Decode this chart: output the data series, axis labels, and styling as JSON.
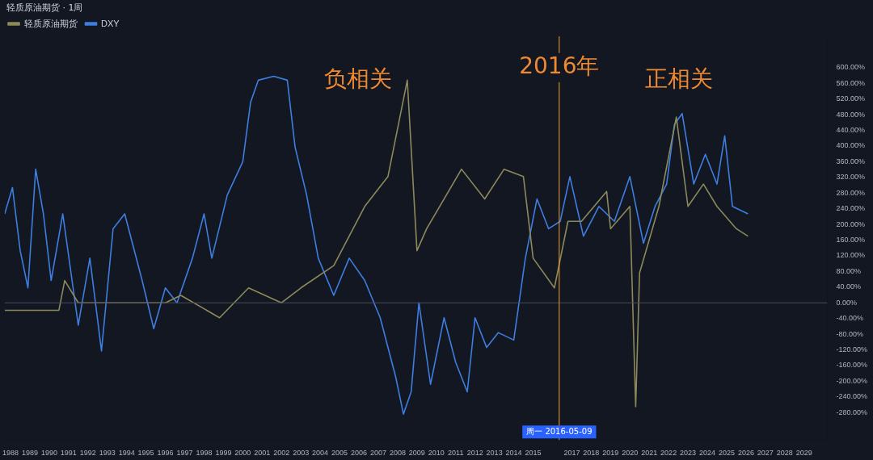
{
  "chart_data": {
    "type": "line",
    "title": "轻质原油期货 · 1周",
    "xlim": [
      1987.7,
      2030.2
    ],
    "xticks": [
      1988,
      1989,
      1990,
      1991,
      1992,
      1993,
      1994,
      1995,
      1996,
      1997,
      1998,
      1999,
      2000,
      2001,
      2002,
      2003,
      2004,
      2005,
      2006,
      2007,
      2008,
      2009,
      2010,
      2011,
      2012,
      2013,
      2014,
      2015,
      2017,
      2018,
      2019,
      2020,
      2021,
      2022,
      2023,
      2024,
      2025,
      2026,
      2027,
      2028,
      2029
    ],
    "ylim": [
      -350,
      680
    ],
    "yticks": [
      {
        "value": -280,
        "label": "-280.00%"
      },
      {
        "value": -240,
        "label": "-240.00%"
      },
      {
        "value": -200,
        "label": "-200.00%"
      },
      {
        "value": -160,
        "label": "-160.00%"
      },
      {
        "value": -120,
        "label": "-120.00%"
      },
      {
        "value": -80,
        "label": "-80.00%"
      },
      {
        "value": -40,
        "label": "-40.00%"
      },
      {
        "value": 0,
        "label": "0.00%"
      },
      {
        "value": 40,
        "label": "40.00%"
      },
      {
        "value": 80,
        "label": "80.00%"
      },
      {
        "value": 120,
        "label": "120.00%"
      },
      {
        "value": 160,
        "label": "160.00%"
      },
      {
        "value": 200,
        "label": "200.00%"
      },
      {
        "value": 240,
        "label": "240.00%"
      },
      {
        "value": 280,
        "label": "280.00%"
      },
      {
        "value": 320,
        "label": "320.00%"
      },
      {
        "value": 360,
        "label": "360.00%"
      },
      {
        "value": 400,
        "label": "400.00%"
      },
      {
        "value": 440,
        "label": "440.00%"
      },
      {
        "value": 480,
        "label": "480.00%"
      },
      {
        "value": 520,
        "label": "520.00%"
      },
      {
        "value": 560,
        "label": "560.00%"
      },
      {
        "value": 600,
        "label": "600.00%"
      }
    ],
    "grid": false,
    "legend": "top left",
    "marker": "none",
    "line_style": "solid",
    "series": [
      {
        "name": "轻质原油期货",
        "color": "#8c8a5a",
        "x": [
          1987.7,
          1990.5,
          1990.8,
          1991.5,
          1996,
          1996.8,
          1998.8,
          2000.3,
          2002,
          2003,
          2004.7,
          2006.3,
          2007.5,
          2008.5,
          2009.0,
          2009.5,
          2011.3,
          2012.5,
          2013.5,
          2014.5,
          2015.0,
          2016.1,
          2016.8,
          2017.5,
          2018.8,
          2019.0,
          2020.0,
          2020.3,
          2020.5,
          2021.5,
          2022.4,
          2023.0,
          2023.8,
          2024.5,
          2025.5,
          2026.1
        ],
        "values": [
          -19,
          -19,
          57,
          0,
          0,
          19,
          -38,
          38,
          0,
          38,
          95,
          246,
          322,
          568,
          133,
          189,
          341,
          265,
          341,
          322,
          114,
          38,
          208,
          208,
          284,
          189,
          246,
          -265,
          76,
          246,
          474,
          246,
          303,
          246,
          189,
          170
        ]
      },
      {
        "name": "DXY",
        "color": "#3d7ee0",
        "x": [
          1987.7,
          1988.1,
          1988.5,
          1988.9,
          1989.3,
          1989.7,
          1990.1,
          1990.7,
          1991.5,
          1992.1,
          1992.7,
          1993.3,
          1993.9,
          1994.8,
          1995.4,
          1996.0,
          1996.6,
          1997.4,
          1998.0,
          1998.4,
          1999.2,
          2000.0,
          2000.4,
          2000.8,
          2001.6,
          2002.3,
          2002.7,
          2003.3,
          2003.9,
          2004.7,
          2005.5,
          2006.3,
          2007.1,
          2007.9,
          2008.3,
          2008.7,
          2009.1,
          2009.7,
          2010.4,
          2011.0,
          2011.6,
          2012.0,
          2012.6,
          2013.2,
          2014.0,
          2014.6,
          2015.2,
          2015.8,
          2016.4,
          2016.9,
          2017.6,
          2018.4,
          2019.2,
          2020.0,
          2020.7,
          2021.3,
          2021.9,
          2022.3,
          2022.7,
          2023.3,
          2023.9,
          2024.5,
          2024.9,
          2025.3,
          2026.1
        ],
        "values": [
          227,
          294,
          133,
          38,
          341,
          227,
          57,
          227,
          -57,
          114,
          -123,
          189,
          227,
          57,
          -66,
          38,
          0,
          114,
          227,
          114,
          275,
          360,
          511,
          568,
          578,
          568,
          398,
          275,
          114,
          19,
          114,
          57,
          -38,
          -189,
          -284,
          -227,
          0,
          -208,
          -38,
          -152,
          -227,
          -38,
          -114,
          -76,
          -95,
          114,
          265,
          189,
          208,
          322,
          170,
          246,
          208,
          322,
          152,
          246,
          303,
          455,
          483,
          303,
          379,
          303,
          426,
          246,
          227
        ]
      }
    ],
    "ref_lines": [
      {
        "axis": "y",
        "value": 0,
        "label": null,
        "color": "#4a4e5a"
      },
      {
        "axis": "x",
        "value": 2016.35,
        "label": "周一 2016-05-09",
        "color": "#f0a030"
      }
    ],
    "annotations": [
      "负相关",
      {
        "text": "2016年",
        "x": 2016.35,
        "y": 600
      },
      "正相关"
    ]
  }
}
